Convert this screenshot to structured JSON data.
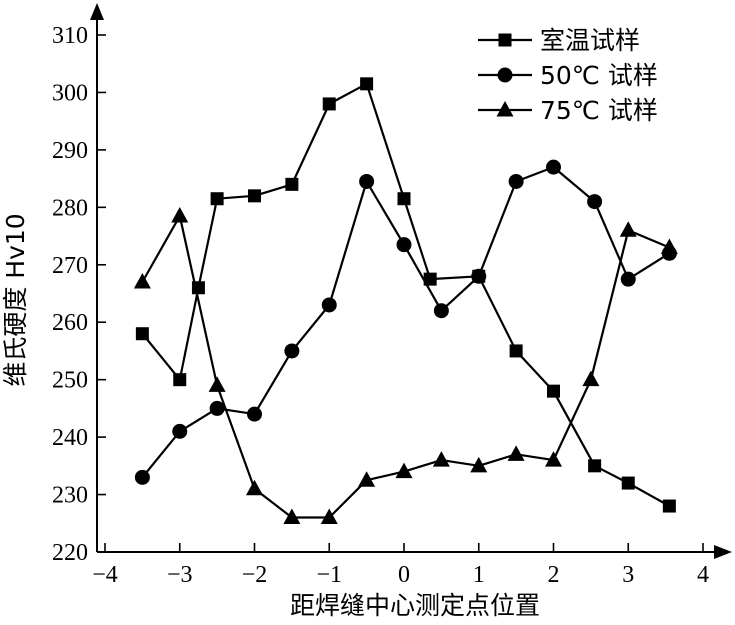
{
  "chart_data": {
    "type": "line",
    "xlabel": "距焊缝中心测定点位置",
    "ylabel": "维氏硬度 Hv10",
    "xlim": [
      -4,
      4
    ],
    "ylim": [
      220,
      310
    ],
    "xticks": [
      "−4",
      "−3",
      "−2",
      "−1",
      "0",
      "1",
      "2",
      "3",
      "4"
    ],
    "yticks": [
      "220",
      "230",
      "240",
      "250",
      "260",
      "270",
      "280",
      "290",
      "300",
      "310"
    ],
    "legend_position": "top-right",
    "series": [
      {
        "name": "室温试样",
        "marker": "square",
        "x": [
          -3.5,
          -3.0,
          -2.75,
          -2.5,
          -2.0,
          -1.5,
          -1.0,
          -0.5,
          0.0,
          0.35,
          1.0,
          1.5,
          2.0,
          2.55,
          3.0,
          3.55
        ],
        "y": [
          258,
          250,
          266,
          281.5,
          282,
          284,
          298,
          301.5,
          281.5,
          267.5,
          268,
          255,
          248,
          235,
          232,
          228
        ]
      },
      {
        "name": "50℃ 试样",
        "marker": "circle",
        "x": [
          -3.5,
          -3.0,
          -2.5,
          -2.0,
          -1.5,
          -1.0,
          -0.5,
          0.0,
          0.5,
          1.0,
          1.5,
          2.0,
          2.55,
          3.0,
          3.55
        ],
        "y": [
          233,
          241,
          245,
          244,
          255,
          263,
          284.5,
          273.5,
          262,
          268,
          284.5,
          287,
          281,
          267.5,
          272
        ]
      },
      {
        "name": "75℃ 试样",
        "marker": "triangle",
        "x": [
          -3.5,
          -3.0,
          -2.5,
          -2.0,
          -1.5,
          -1.0,
          -0.5,
          0.0,
          0.5,
          1.0,
          1.5,
          2.0,
          2.5,
          3.0,
          3.55
        ],
        "y": [
          267,
          278.5,
          249,
          231,
          226,
          226,
          232.5,
          234,
          236,
          235,
          237,
          236,
          250,
          276,
          273
        ]
      }
    ]
  }
}
